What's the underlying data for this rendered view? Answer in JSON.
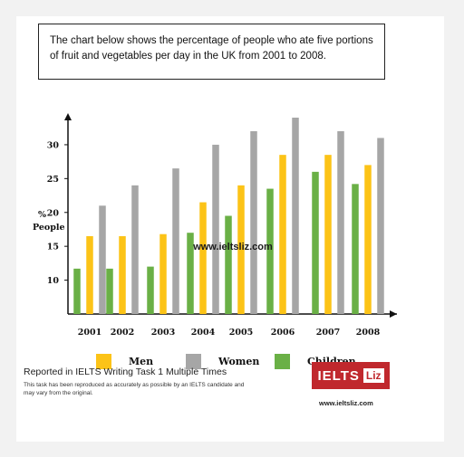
{
  "description": "The chart below shows the percentage of people who ate five portions of fruit and vegetables per day in the UK from 2001 to 2008.",
  "watermark": "www.ieltsliz.com",
  "colors": {
    "men": "#fcc317",
    "women": "#a6a6a6",
    "children": "#6ab046",
    "axis": "#111111"
  },
  "chart_data": {
    "type": "bar",
    "title": "",
    "xlabel": "",
    "ylabel": "% People",
    "ylabel_lines": [
      "%",
      "People"
    ],
    "ylim": [
      5,
      34
    ],
    "yticks": [
      10,
      15,
      20,
      25,
      30
    ],
    "categories": [
      "2001",
      "2002",
      "2003",
      "2004",
      "2005",
      "2006",
      "2007",
      "2008"
    ],
    "series": [
      {
        "name": "Men",
        "color": "#fcc317",
        "values": [
          16.5,
          16.5,
          16.8,
          21.5,
          24,
          28.5,
          28.5,
          27
        ]
      },
      {
        "name": "Women",
        "color": "#a6a6a6",
        "values": [
          21,
          24,
          26.5,
          30,
          32,
          34,
          32,
          31
        ]
      },
      {
        "name": "Children",
        "color": "#6ab046",
        "values": [
          11.7,
          11.7,
          12,
          17,
          19.5,
          23.5,
          26,
          24.2
        ]
      }
    ],
    "grid": false,
    "legend_position": "bottom"
  },
  "legend": [
    {
      "label": "Men",
      "color": "#fcc317"
    },
    {
      "label": "Women",
      "color": "#a6a6a6"
    },
    {
      "label": "Children",
      "color": "#6ab046"
    }
  ],
  "footer": {
    "source": "Reported in IELTS Writing Task 1 Multiple Times",
    "disclaimer": "This task has been reproduced as accurately as possible by an IELTS candidate and may vary from the original.",
    "logo_main": "IELTS",
    "logo_accent": "Liz",
    "url": "www.ieltsliz.com"
  }
}
